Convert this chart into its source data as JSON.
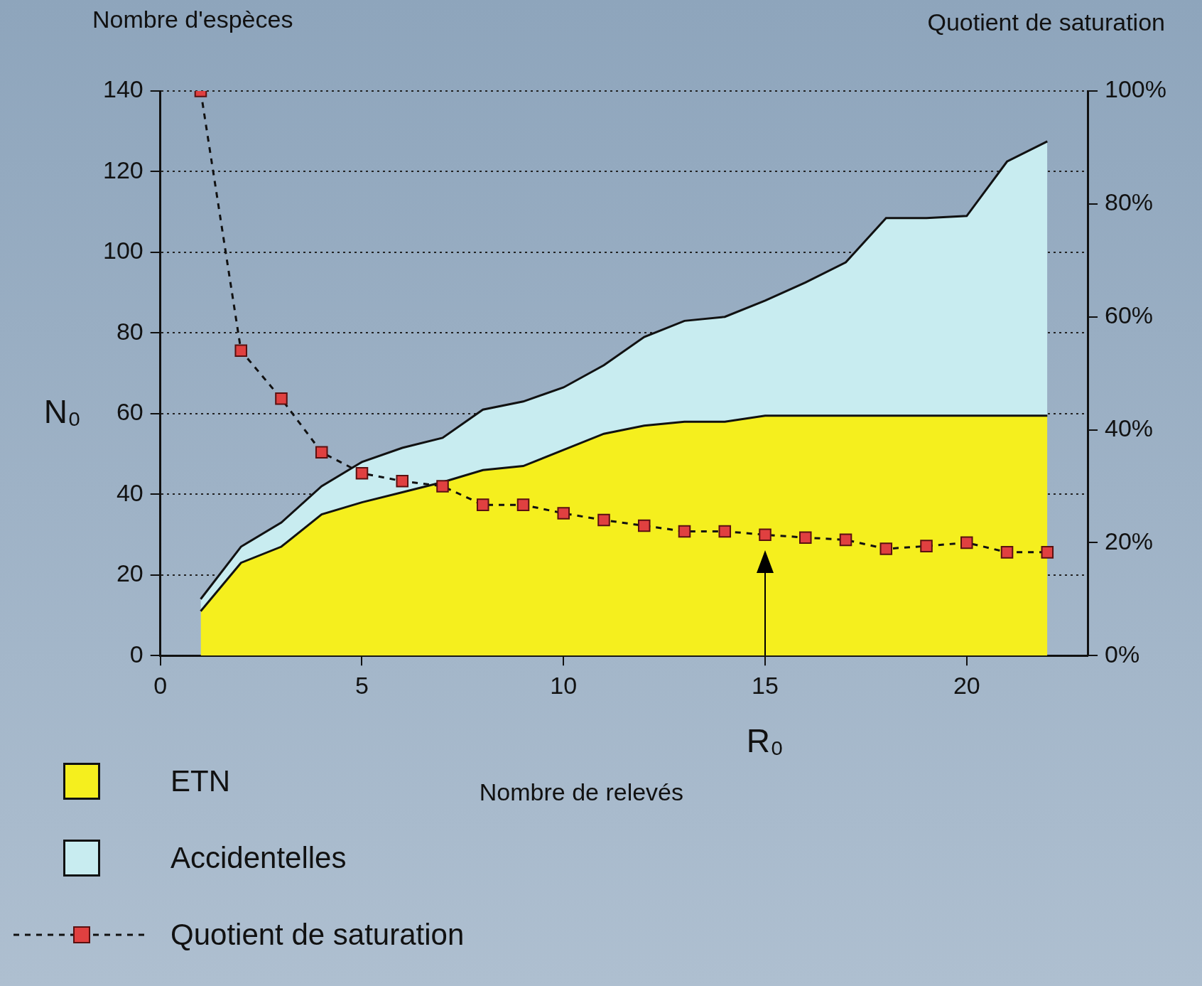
{
  "chart_data": {
    "type": "area",
    "stacked": true,
    "title": null,
    "ylabel": "N₀",
    "xlabel": "R₀",
    "y2label": "Quotient de saturation",
    "annotations": [
      "Nombre d'espèces",
      "Nombre de relevés"
    ],
    "x": [
      1,
      2,
      3,
      4,
      5,
      6,
      7,
      8,
      9,
      10,
      11,
      12,
      13,
      14,
      15,
      16,
      17,
      18,
      19,
      20,
      21,
      22
    ],
    "series": [
      {
        "name": "ETN",
        "color": "#f5ef1e",
        "values": [
          11,
          23,
          27,
          35,
          38,
          40.5,
          43,
          46,
          47,
          51,
          55,
          57,
          58,
          58,
          59.5,
          59.5,
          59.5,
          59.5,
          59.5,
          59.5,
          59.5,
          59.5
        ]
      },
      {
        "name": "Accidentelles",
        "color": "#c8ecf0",
        "values": [
          3,
          4,
          6,
          7,
          10,
          11,
          11,
          15,
          16,
          15.5,
          17,
          22,
          25,
          26,
          28.5,
          33,
          38,
          49,
          49,
          49.5,
          63,
          68
        ]
      },
      {
        "name": "Quotient de saturation",
        "type": "line",
        "axis": "y2",
        "color": "#e04040",
        "marker": "square",
        "line_style": "dashed",
        "values": [
          100,
          54,
          45.5,
          36,
          32.3,
          30.9,
          30,
          26.7,
          26.7,
          25.2,
          24,
          23,
          22,
          22,
          21.4,
          20.9,
          20.5,
          18.9,
          19.4,
          20,
          18.3,
          18.3
        ]
      }
    ],
    "xlim": [
      0,
      23
    ],
    "xticks": [
      0,
      5,
      10,
      15,
      20
    ],
    "ylim": [
      0,
      140
    ],
    "yticks": [
      0,
      20,
      40,
      60,
      80,
      100,
      120,
      140
    ],
    "y2lim": [
      0,
      100
    ],
    "y2ticks": [
      {
        "value": 0,
        "label": "0%"
      },
      {
        "value": 20,
        "label": "20%"
      },
      {
        "value": 40,
        "label": "40%"
      },
      {
        "value": 60,
        "label": "60%"
      },
      {
        "value": 80,
        "label": "80%"
      },
      {
        "value": 100,
        "label": "100%"
      }
    ],
    "ref_lines": [
      {
        "axis": "x",
        "value": 15,
        "line_style": "solid",
        "color": "#000000"
      }
    ],
    "grid": "y",
    "legend": "bottom left"
  }
}
